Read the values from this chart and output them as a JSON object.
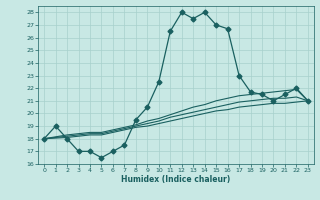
{
  "title": "",
  "xlabel": "Humidex (Indice chaleur)",
  "ylabel": "",
  "xlim": [
    -0.5,
    23.5
  ],
  "ylim": [
    16,
    28.5
  ],
  "yticks": [
    16,
    17,
    18,
    19,
    20,
    21,
    22,
    23,
    24,
    25,
    26,
    27,
    28
  ],
  "xticks": [
    0,
    1,
    2,
    3,
    4,
    5,
    6,
    7,
    8,
    9,
    10,
    11,
    12,
    13,
    14,
    15,
    16,
    17,
    18,
    19,
    20,
    21,
    22,
    23
  ],
  "background_color": "#c8e8e4",
  "grid_color": "#a8d0cc",
  "line_color": "#1a6060",
  "lines": [
    {
      "x": [
        0,
        1,
        2,
        3,
        4,
        5,
        6,
        7,
        8,
        9,
        10,
        11,
        12,
        13,
        14,
        15,
        16,
        17,
        18,
        19,
        20,
        21,
        22,
        23
      ],
      "y": [
        18,
        19,
        18,
        17,
        17,
        16.5,
        17,
        17.5,
        19.5,
        20.5,
        22.5,
        26.5,
        28.0,
        27.5,
        28.0,
        27.0,
        26.7,
        23.0,
        21.7,
        21.5,
        21.0,
        21.5,
        22.0,
        21.0
      ],
      "marker": "D",
      "marker_size": 2.5,
      "linewidth": 0.9
    },
    {
      "x": [
        0,
        2,
        3,
        4,
        5,
        6,
        7,
        8,
        9,
        10,
        11,
        12,
        13,
        14,
        15,
        16,
        17,
        18,
        19,
        20,
        21,
        22,
        23
      ],
      "y": [
        18,
        18.3,
        18.4,
        18.5,
        18.5,
        18.7,
        18.9,
        19.1,
        19.4,
        19.6,
        19.9,
        20.2,
        20.5,
        20.7,
        21.0,
        21.2,
        21.4,
        21.5,
        21.6,
        21.7,
        21.8,
        21.9,
        21.0
      ],
      "marker": null,
      "marker_size": 0,
      "linewidth": 0.8
    },
    {
      "x": [
        0,
        2,
        3,
        4,
        5,
        6,
        7,
        8,
        9,
        10,
        11,
        12,
        13,
        14,
        15,
        16,
        17,
        18,
        19,
        20,
        21,
        22,
        23
      ],
      "y": [
        18,
        18.2,
        18.3,
        18.4,
        18.4,
        18.6,
        18.8,
        19.0,
        19.2,
        19.4,
        19.7,
        19.9,
        20.1,
        20.3,
        20.5,
        20.7,
        20.9,
        21.0,
        21.1,
        21.2,
        21.2,
        21.3,
        21.0
      ],
      "marker": null,
      "marker_size": 0,
      "linewidth": 0.8
    },
    {
      "x": [
        0,
        2,
        3,
        4,
        5,
        6,
        7,
        8,
        9,
        10,
        11,
        12,
        13,
        14,
        15,
        16,
        17,
        18,
        19,
        20,
        21,
        22,
        23
      ],
      "y": [
        18,
        18.1,
        18.2,
        18.3,
        18.3,
        18.5,
        18.7,
        18.9,
        19.0,
        19.2,
        19.4,
        19.6,
        19.8,
        20.0,
        20.2,
        20.3,
        20.5,
        20.6,
        20.7,
        20.8,
        20.8,
        20.9,
        21.0
      ],
      "marker": null,
      "marker_size": 0,
      "linewidth": 0.8
    }
  ]
}
